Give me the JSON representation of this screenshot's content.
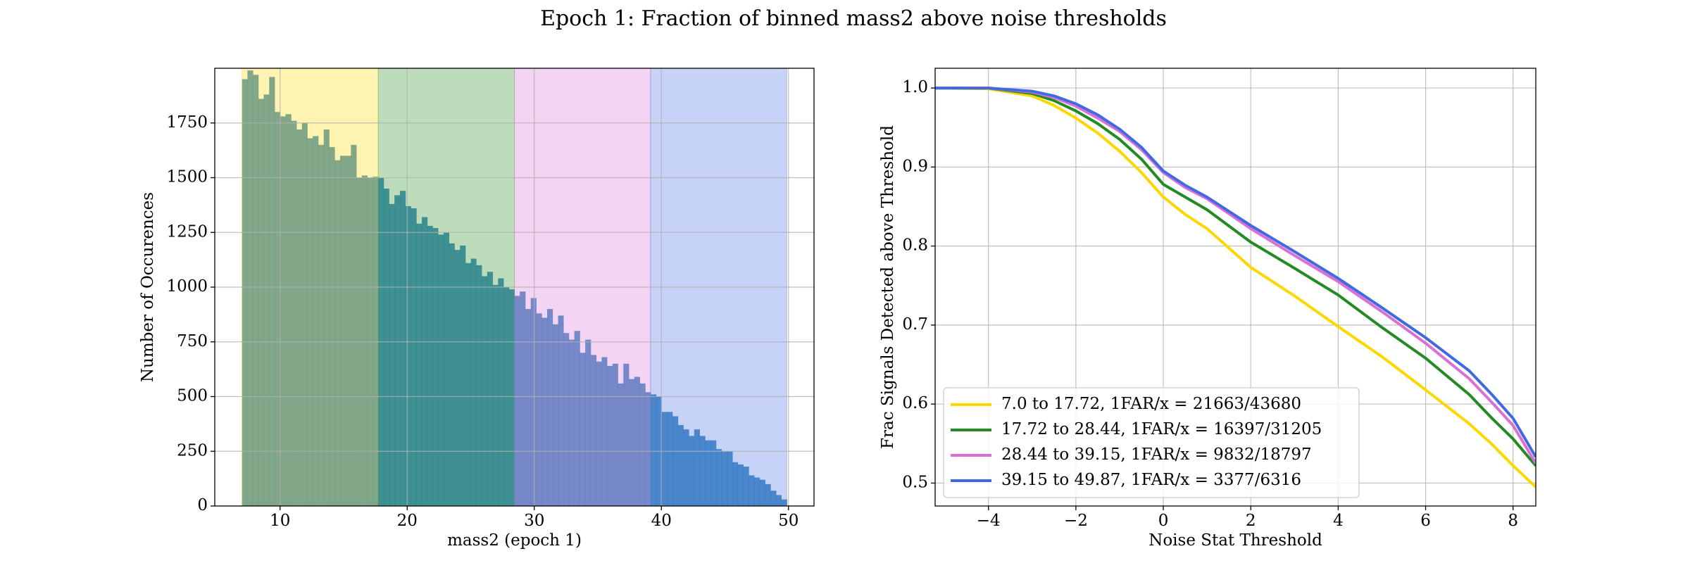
{
  "title": "Epoch 1: Fraction of binned mass2 above noise thresholds",
  "chart_data": [
    {
      "type": "histogram",
      "xlabel": "mass2 (epoch 1)",
      "ylabel": "Number of Occurences",
      "bins": [
        7.0,
        7.43,
        7.86,
        8.29,
        8.71,
        9.14,
        9.57,
        10.0,
        10.43,
        10.86,
        11.29,
        11.72,
        12.14,
        12.57,
        13.0,
        13.43,
        13.86,
        14.29,
        14.72,
        15.15,
        15.57,
        16.0,
        16.43,
        16.86,
        17.29,
        17.72,
        18.15,
        18.57,
        19.0,
        19.43,
        19.86,
        20.29,
        20.72,
        21.15,
        21.58,
        22.0,
        22.43,
        22.86,
        23.29,
        23.72,
        24.15,
        24.58,
        25.01,
        25.43,
        25.86,
        26.29,
        26.72,
        27.15,
        27.58,
        28.01,
        28.44,
        28.86,
        29.29,
        29.72,
        30.15,
        30.58,
        31.01,
        31.44,
        31.87,
        32.29,
        32.72,
        33.15,
        33.58,
        34.01,
        34.44,
        34.87,
        35.3,
        35.72,
        36.15,
        36.58,
        37.01,
        37.44,
        37.87,
        38.3,
        38.73,
        39.15,
        39.58,
        40.01,
        40.44,
        40.87,
        41.3,
        41.73,
        42.16,
        42.58,
        43.01,
        43.44,
        43.87,
        44.3,
        44.73,
        45.16,
        45.59,
        46.01,
        46.44,
        46.87,
        47.3,
        47.73,
        48.16,
        48.59,
        49.02,
        49.44,
        49.87
      ],
      "values": [
        1950,
        1990,
        1970,
        1860,
        1880,
        1960,
        1800,
        1780,
        1790,
        1760,
        1720,
        1750,
        1680,
        1690,
        1650,
        1720,
        1640,
        1580,
        1600,
        1600,
        1650,
        1500,
        1510,
        1500,
        1505,
        1500,
        1450,
        1380,
        1420,
        1440,
        1370,
        1360,
        1290,
        1320,
        1280,
        1270,
        1240,
        1250,
        1200,
        1170,
        1190,
        1110,
        1130,
        1100,
        1050,
        1070,
        1010,
        1040,
        1000,
        990,
        960,
        980,
        900,
        950,
        880,
        860,
        900,
        830,
        870,
        790,
        760,
        800,
        700,
        760,
        690,
        660,
        680,
        640,
        650,
        560,
        650,
        580,
        590,
        560,
        520,
        510,
        500,
        430,
        430,
        410,
        370,
        350,
        320,
        350,
        320,
        300,
        300,
        260,
        250,
        250,
        200,
        190,
        180,
        140,
        130,
        120,
        100,
        70,
        50,
        30
      ],
      "color": "#1f77b4",
      "bands": [
        7.0,
        17.72,
        28.44,
        39.15,
        49.87
      ],
      "band_colors": [
        "#ffd700",
        "#228b22",
        "#da70d6",
        "#4169e1"
      ],
      "xlim": [
        4.86,
        52.01
      ],
      "xticks": [
        10,
        20,
        30,
        40,
        50
      ],
      "ylim": [
        0,
        2000
      ],
      "yticks": [
        0,
        250,
        500,
        750,
        1000,
        1250,
        1500,
        1750
      ],
      "grid": true
    },
    {
      "type": "line",
      "xlabel": "Noise Stat Threshold",
      "ylabel": "Frac Signals Detected above Threshold",
      "x": [
        -5.22,
        -4,
        -3,
        -2.5,
        -2,
        -1.5,
        -1,
        -0.5,
        0,
        0.5,
        1,
        2,
        3,
        4,
        5,
        6,
        7,
        7.5,
        8,
        8.52
      ],
      "series": [
        {
          "name": "7.0 to 17.72, 1FAR/x = 21663/43680",
          "color": "#ffd700",
          "values": [
            1.0,
            0.999,
            0.99,
            0.978,
            0.962,
            0.943,
            0.92,
            0.893,
            0.862,
            0.84,
            0.822,
            0.773,
            0.737,
            0.698,
            0.66,
            0.618,
            0.575,
            0.55,
            0.522,
            0.495
          ]
        },
        {
          "name": "17.72 to 28.44, 1FAR/x = 16397/31205",
          "color": "#228b22",
          "values": [
            1.0,
            1.0,
            0.993,
            0.984,
            0.971,
            0.955,
            0.935,
            0.91,
            0.878,
            0.862,
            0.846,
            0.805,
            0.772,
            0.738,
            0.697,
            0.658,
            0.612,
            0.583,
            0.556,
            0.522
          ]
        },
        {
          "name": "28.44 to 39.15, 1FAR/x = 9832/18797",
          "color": "#da70d6",
          "values": [
            1.0,
            1.0,
            0.995,
            0.988,
            0.977,
            0.962,
            0.945,
            0.922,
            0.893,
            0.874,
            0.86,
            0.822,
            0.788,
            0.755,
            0.717,
            0.677,
            0.632,
            0.603,
            0.573,
            0.525
          ]
        },
        {
          "name": "39.15 to 49.87, 1FAR/x = 3377/6316",
          "color": "#4169e1",
          "values": [
            1.0,
            1.0,
            0.996,
            0.99,
            0.98,
            0.966,
            0.948,
            0.925,
            0.895,
            0.877,
            0.862,
            0.826,
            0.793,
            0.759,
            0.722,
            0.684,
            0.642,
            0.613,
            0.582,
            0.533
          ]
        }
      ],
      "xlim": [
        -5.22,
        8.52
      ],
      "xticks": [
        {
          "value": -4,
          "label": "−4"
        },
        {
          "value": -2,
          "label": "−2"
        },
        0,
        2,
        4,
        6,
        8
      ],
      "ylim": [
        0.471,
        1.025
      ],
      "yticks": [
        0.5,
        0.6,
        0.7,
        0.8,
        0.9,
        {
          "value": 1,
          "label": "1.0"
        }
      ],
      "grid": true,
      "legend": "lower left"
    }
  ]
}
